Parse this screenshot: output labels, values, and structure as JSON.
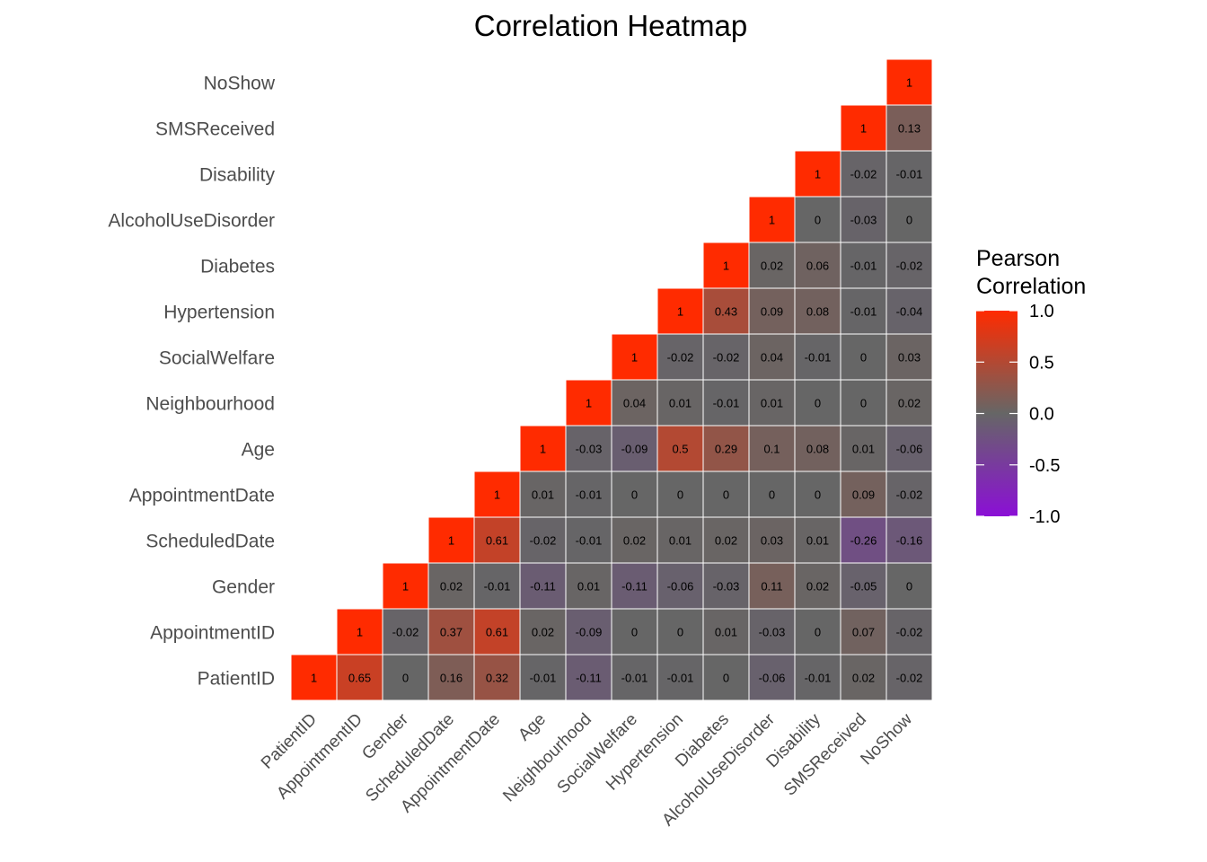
{
  "chart_data": {
    "type": "heatmap",
    "title": "Correlation Heatmap",
    "variables": [
      "PatientID",
      "AppointmentID",
      "Gender",
      "ScheduledDate",
      "AppointmentDate",
      "Age",
      "Neighbourhood",
      "SocialWelfare",
      "Hypertension",
      "Diabetes",
      "AlcoholUseDisorder",
      "Disability",
      "SMSReceived",
      "NoShow"
    ],
    "matrix": [
      [
        "1",
        "0.65",
        "0",
        "0.16",
        "0.32",
        "-0.01",
        "-0.11",
        "-0.01",
        "-0.01",
        "0",
        "-0.06",
        "-0.01",
        "0.02",
        "-0.02"
      ],
      [
        null,
        "1",
        "-0.02",
        "0.37",
        "0.61",
        "0.02",
        "-0.09",
        "0",
        "0",
        "0.01",
        "-0.03",
        "0",
        "0.07",
        "-0.02"
      ],
      [
        null,
        null,
        "1",
        "0.02",
        "-0.01",
        "-0.11",
        "0.01",
        "-0.11",
        "-0.06",
        "-0.03",
        "0.11",
        "0.02",
        "-0.05",
        "0"
      ],
      [
        null,
        null,
        null,
        "1",
        "0.61",
        "-0.02",
        "-0.01",
        "0.02",
        "0.01",
        "0.02",
        "0.03",
        "0.01",
        "-0.26",
        "-0.16"
      ],
      [
        null,
        null,
        null,
        null,
        "1",
        "0.01",
        "-0.01",
        "0",
        "0",
        "0",
        "0",
        "0",
        "0.09",
        "-0.02"
      ],
      [
        null,
        null,
        null,
        null,
        null,
        "1",
        "-0.03",
        "-0.09",
        "0.5",
        "0.29",
        "0.1",
        "0.08",
        "0.01",
        "-0.06"
      ],
      [
        null,
        null,
        null,
        null,
        null,
        null,
        "1",
        "0.04",
        "0.01",
        "-0.01",
        "0.01",
        "0",
        "0",
        "0.02"
      ],
      [
        null,
        null,
        null,
        null,
        null,
        null,
        null,
        "1",
        "-0.02",
        "-0.02",
        "0.04",
        "-0.01",
        "0",
        "0.03"
      ],
      [
        null,
        null,
        null,
        null,
        null,
        null,
        null,
        null,
        "1",
        "0.43",
        "0.09",
        "0.08",
        "-0.01",
        "-0.04"
      ],
      [
        null,
        null,
        null,
        null,
        null,
        null,
        null,
        null,
        null,
        "1",
        "0.02",
        "0.06",
        "-0.01",
        "-0.02"
      ],
      [
        null,
        null,
        null,
        null,
        null,
        null,
        null,
        null,
        null,
        null,
        "1",
        "0",
        "-0.03",
        "0"
      ],
      [
        null,
        null,
        null,
        null,
        null,
        null,
        null,
        null,
        null,
        null,
        null,
        "1",
        "-0.02",
        "-0.01"
      ],
      [
        null,
        null,
        null,
        null,
        null,
        null,
        null,
        null,
        null,
        null,
        null,
        null,
        "1",
        "0.13"
      ],
      [
        null,
        null,
        null,
        null,
        null,
        null,
        null,
        null,
        null,
        null,
        null,
        null,
        null,
        "1"
      ]
    ],
    "legend": {
      "title_lines": [
        "Pearson",
        "Correlation"
      ],
      "ticks": [
        "1.0",
        "0.5",
        "0.0",
        "-0.5",
        "-1.0"
      ],
      "limits": [
        -1,
        1
      ],
      "colors": {
        "low": "#8b0fd6",
        "mid": "#666666",
        "high": "#ff2b00"
      }
    },
    "grid": false,
    "legend_position": "right"
  }
}
